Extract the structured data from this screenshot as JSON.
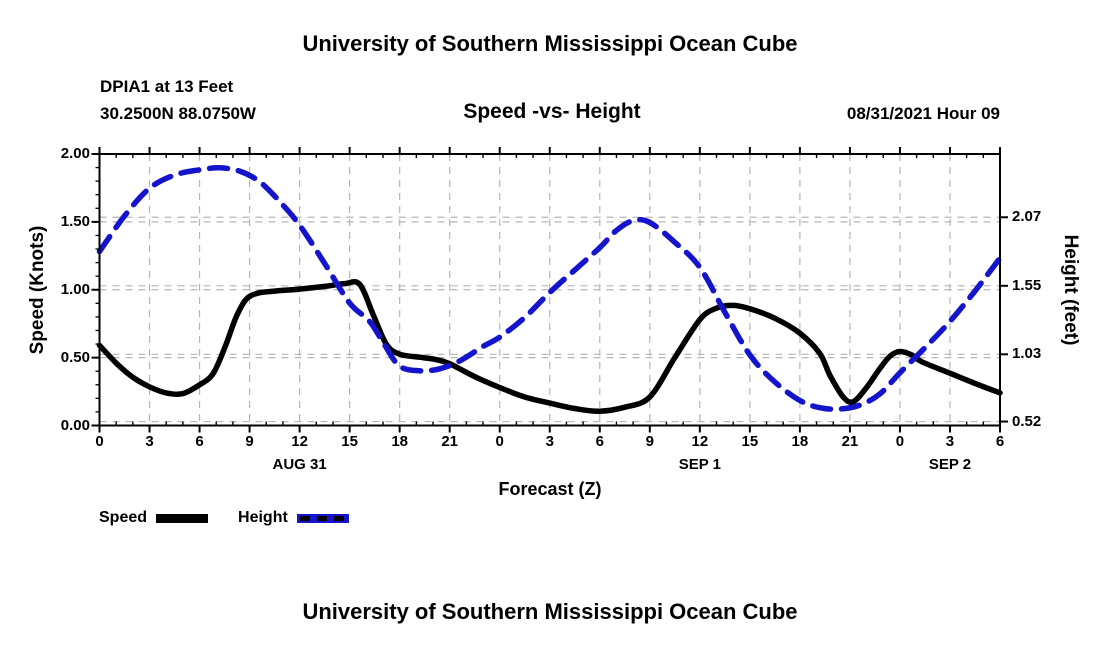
{
  "page": {
    "top_title": "University of Southern Mississippi Ocean Cube",
    "bottom_title": "University of Southern Mississippi Ocean Cube"
  },
  "header": {
    "station": "DPIA1 at 13 Feet",
    "coordinates": "30.2500N  88.0750W",
    "plot_title": "Speed -vs- Height",
    "datetime": "08/31/2021 Hour 09"
  },
  "colors": {
    "speed_line": "#000000",
    "height_line": "#1414cc",
    "grid": "#b5b5b5",
    "axis": "#000000",
    "text": "#000000",
    "background": "#ffffff"
  },
  "chart_data": {
    "type": "line",
    "title": "Speed -vs- Height",
    "xlabel": "Forecast (Z)",
    "ylabel_left": "Speed (Knots)",
    "ylabel_right": "Height (feet)",
    "x_unit": "hours since 08/31/2021 00Z",
    "x_range_hours": [
      0,
      54
    ],
    "x_tick_interval_hours": 3,
    "x_minor_tick_interval_hours": 1,
    "grid": "on",
    "x_tick_labels": [
      "0",
      "3",
      "6",
      "9",
      "12",
      "15",
      "18",
      "21",
      "0",
      "3",
      "6",
      "9",
      "12",
      "15",
      "18",
      "21",
      "0",
      "3",
      "6"
    ],
    "x_date_labels": [
      {
        "label": "AUG 31",
        "hour": 12
      },
      {
        "label": "SEP 1",
        "hour": 36
      },
      {
        "label": "SEP 2",
        "hour": 51
      }
    ],
    "left_axis": {
      "label": "Speed (Knots)",
      "min": 0.0,
      "max": 2.0,
      "ticks": [
        {
          "label": "0.00",
          "value": 0.0
        },
        {
          "label": "0.50",
          "value": 0.5
        },
        {
          "label": "1.00",
          "value": 1.0
        },
        {
          "label": "1.50",
          "value": 1.5
        },
        {
          "label": "2.00",
          "value": 2.0
        }
      ],
      "minor_tick_step": 0.1,
      "grid_values": [
        0.5,
        1.0,
        1.5
      ]
    },
    "right_axis": {
      "label": "Height (feet)",
      "min": 0.49,
      "max": 2.55,
      "ticks": [
        {
          "label": "0.52",
          "value": 0.52
        },
        {
          "label": "1.03",
          "value": 1.03
        },
        {
          "label": "1.55",
          "value": 1.55
        },
        {
          "label": "2.07",
          "value": 2.07
        }
      ],
      "grid_values": [
        0.52,
        1.03,
        1.55,
        2.07
      ]
    },
    "series": [
      {
        "name": "Speed",
        "axis": "left",
        "units": "knots",
        "color": "#000000",
        "style": "solid",
        "points": [
          [
            0,
            0.59
          ],
          [
            1,
            0.46
          ],
          [
            2,
            0.355
          ],
          [
            3,
            0.285
          ],
          [
            4,
            0.24
          ],
          [
            5,
            0.235
          ],
          [
            6,
            0.3
          ],
          [
            6.8,
            0.38
          ],
          [
            7.5,
            0.57
          ],
          [
            8.2,
            0.8
          ],
          [
            8.8,
            0.93
          ],
          [
            9.5,
            0.975
          ],
          [
            10.5,
            0.99
          ],
          [
            12,
            1.005
          ],
          [
            13.5,
            1.025
          ],
          [
            14.7,
            1.045
          ],
          [
            15.6,
            1.04
          ],
          [
            16.4,
            0.82
          ],
          [
            17.2,
            0.6
          ],
          [
            18,
            0.525
          ],
          [
            19.4,
            0.5
          ],
          [
            20.2,
            0.485
          ],
          [
            21,
            0.455
          ],
          [
            22.5,
            0.36
          ],
          [
            24,
            0.28
          ],
          [
            25.5,
            0.21
          ],
          [
            27,
            0.165
          ],
          [
            28.5,
            0.125
          ],
          [
            30,
            0.105
          ],
          [
            31.5,
            0.135
          ],
          [
            33,
            0.21
          ],
          [
            34.5,
            0.5
          ],
          [
            36,
            0.78
          ],
          [
            37,
            0.865
          ],
          [
            38,
            0.885
          ],
          [
            39,
            0.86
          ],
          [
            40.5,
            0.79
          ],
          [
            42,
            0.68
          ],
          [
            43.2,
            0.53
          ],
          [
            43.8,
            0.37
          ],
          [
            44.6,
            0.21
          ],
          [
            45.2,
            0.175
          ],
          [
            46,
            0.28
          ],
          [
            46.8,
            0.42
          ],
          [
            47.4,
            0.51
          ],
          [
            48,
            0.545
          ],
          [
            48.7,
            0.52
          ],
          [
            49.3,
            0.47
          ],
          [
            51,
            0.385
          ],
          [
            52.5,
            0.31
          ],
          [
            54,
            0.24
          ]
        ]
      },
      {
        "name": "Height",
        "axis": "right",
        "units": "feet",
        "color": "#1414cc",
        "style": "dashed",
        "points": [
          [
            0,
            1.81
          ],
          [
            1.5,
            2.08
          ],
          [
            3,
            2.29
          ],
          [
            4.5,
            2.39
          ],
          [
            6,
            2.43
          ],
          [
            7.2,
            2.445
          ],
          [
            8.4,
            2.42
          ],
          [
            9.6,
            2.34
          ],
          [
            10.8,
            2.19
          ],
          [
            12,
            2.01
          ],
          [
            13.5,
            1.72
          ],
          [
            15,
            1.42
          ],
          [
            16.2,
            1.28
          ],
          [
            17.1,
            1.1
          ],
          [
            18,
            0.94
          ],
          [
            19.2,
            0.905
          ],
          [
            20.4,
            0.92
          ],
          [
            21.6,
            0.98
          ],
          [
            23,
            1.09
          ],
          [
            24,
            1.16
          ],
          [
            25.5,
            1.31
          ],
          [
            27,
            1.5
          ],
          [
            28.5,
            1.67
          ],
          [
            30,
            1.84
          ],
          [
            31,
            1.97
          ],
          [
            32,
            2.045
          ],
          [
            33,
            2.03
          ],
          [
            34.5,
            1.88
          ],
          [
            36,
            1.69
          ],
          [
            37.5,
            1.35
          ],
          [
            39,
            1.025
          ],
          [
            40.5,
            0.82
          ],
          [
            42,
            0.68
          ],
          [
            43.2,
            0.625
          ],
          [
            44.4,
            0.615
          ],
          [
            45.6,
            0.645
          ],
          [
            46.8,
            0.73
          ],
          [
            48,
            0.89
          ],
          [
            49.5,
            1.08
          ],
          [
            51,
            1.28
          ],
          [
            52.5,
            1.51
          ],
          [
            54,
            1.76
          ]
        ]
      }
    ],
    "legend": [
      {
        "label": "Speed",
        "color": "#000000",
        "style": "solid"
      },
      {
        "label": "Height",
        "color": "#1414cc",
        "style": "dashed"
      }
    ],
    "legend_position": "bottom-left"
  }
}
